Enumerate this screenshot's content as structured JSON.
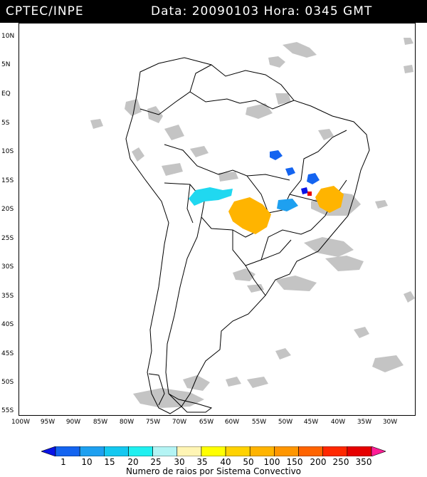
{
  "header": {
    "source": "CPTEC/INPE",
    "datetime": "Data: 20090103 Hora: 0345 GMT"
  },
  "map": {
    "lat_labels": [
      "10N",
      "5N",
      "EQ",
      "5S",
      "10S",
      "15S",
      "20S",
      "25S",
      "30S",
      "35S",
      "40S",
      "45S",
      "50S",
      "55S"
    ],
    "lon_labels": [
      "100W",
      "95W",
      "90W",
      "85W",
      "80W",
      "75W",
      "70W",
      "65W",
      "60W",
      "55W",
      "50W",
      "45W",
      "40W",
      "35W",
      "30W"
    ],
    "extent": {
      "lon_min": -100,
      "lon_max": -27,
      "lat_max": 12,
      "lat_min": -56
    },
    "cloud_color": "#c4c4c4",
    "border_color": "#000000"
  },
  "legend": {
    "values": [
      "1",
      "10",
      "15",
      "20",
      "25",
      "30",
      "35",
      "40",
      "50",
      "100",
      "150",
      "200",
      "250",
      "350"
    ],
    "colors": [
      "#0a14e6",
      "#1464f0",
      "#1ea0f0",
      "#14c8f0",
      "#20f0f0",
      "#b4f4f4",
      "#fff5b4",
      "#ffff00",
      "#ffd200",
      "#ffb400",
      "#ff9600",
      "#ff6400",
      "#ff2800",
      "#e60000",
      "#ff1e96"
    ],
    "caption": "Numero de raios por Sistema Convectivo"
  }
}
